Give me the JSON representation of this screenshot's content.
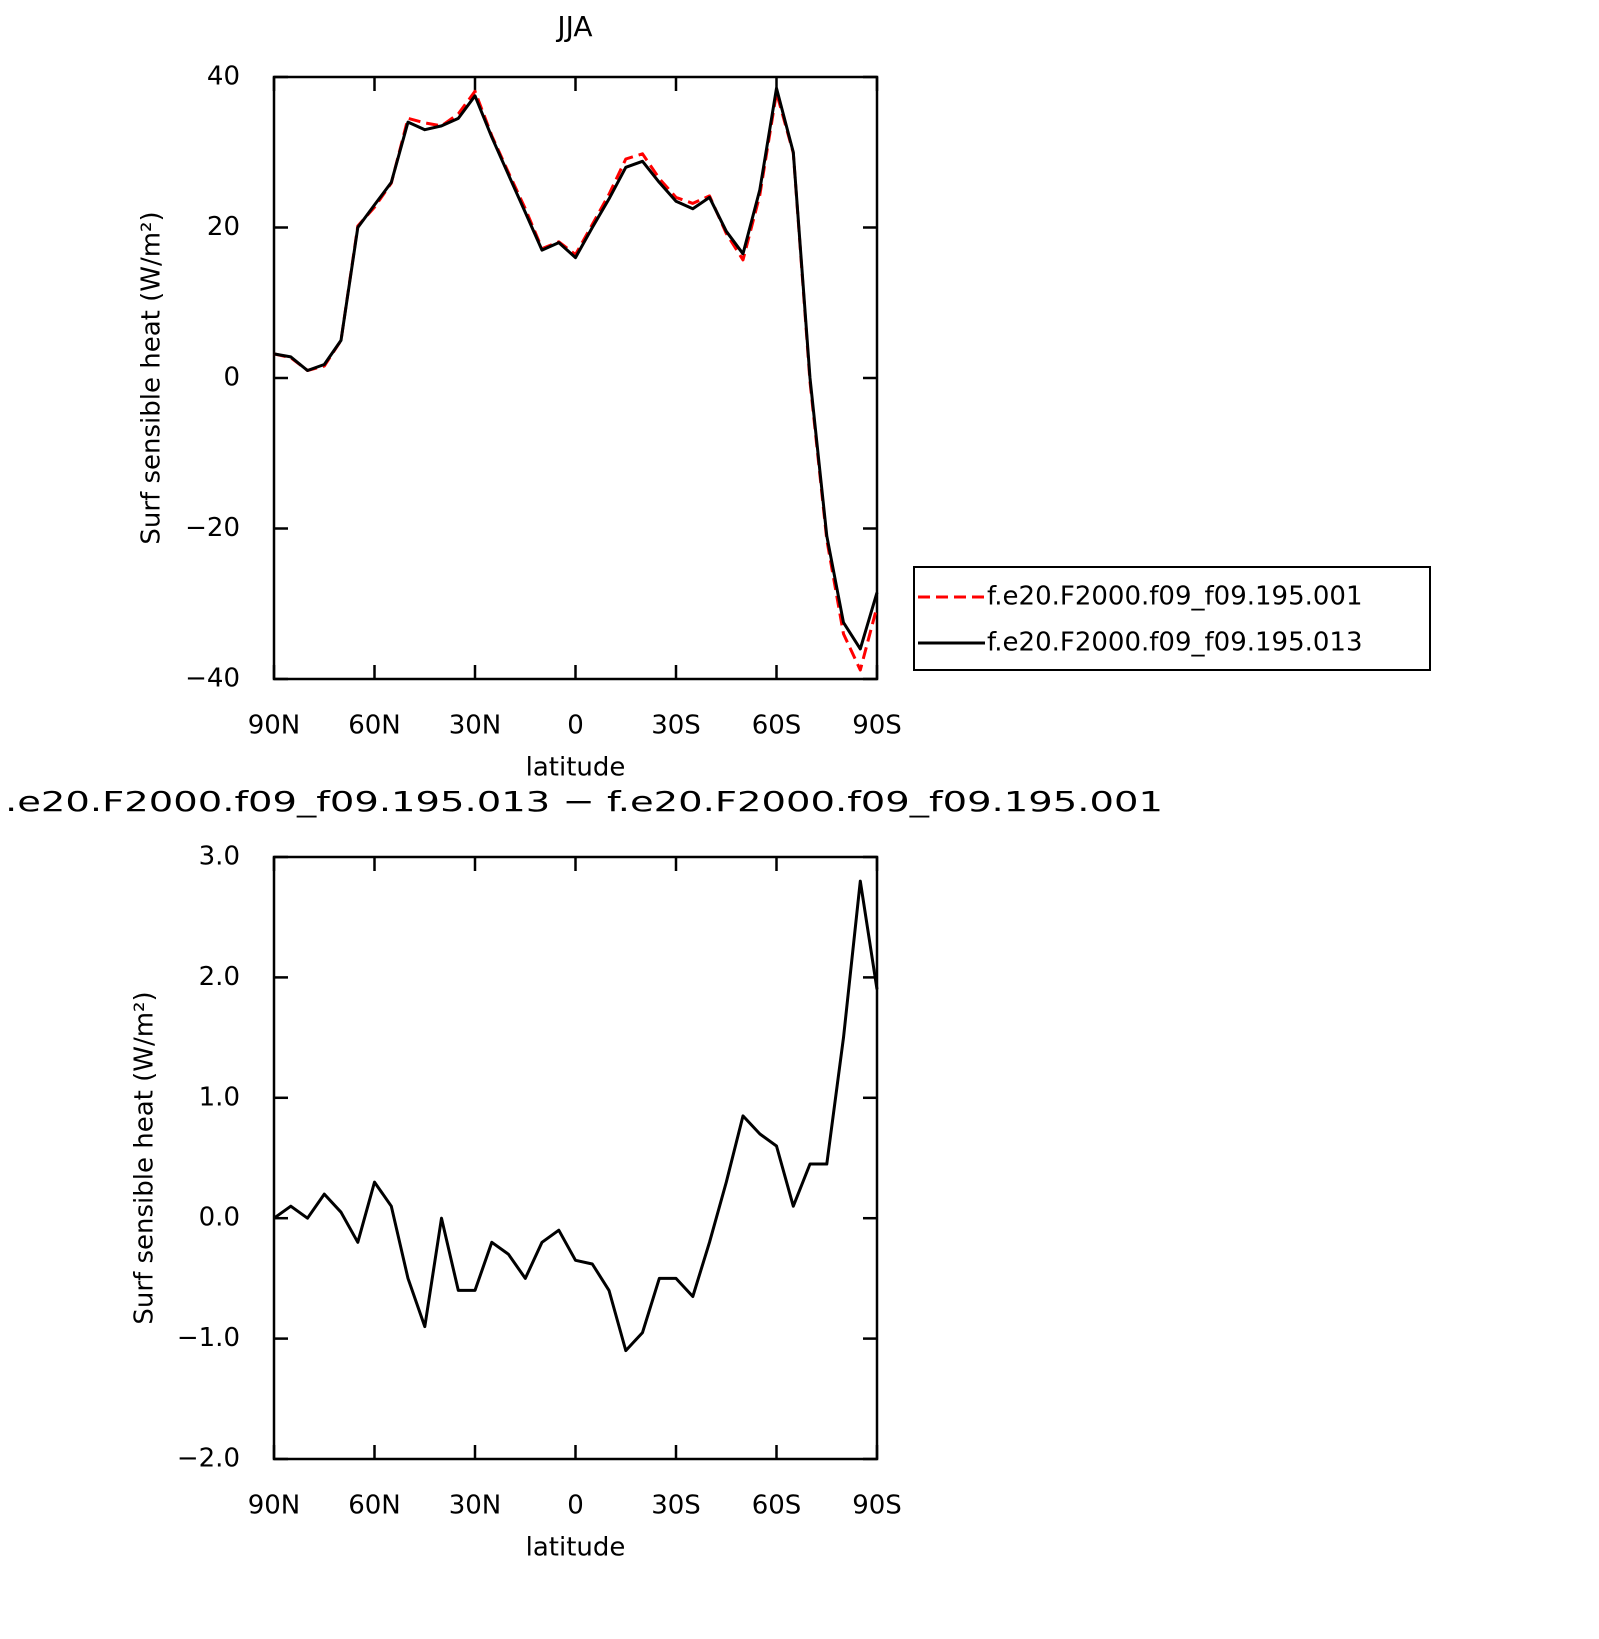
{
  "chart_data": [
    {
      "type": "line",
      "title": "JJA",
      "xlabel": "latitude",
      "ylabel": "Surf sensible heat (W/m²)",
      "x": [
        90,
        85,
        80,
        75,
        70,
        65,
        60,
        55,
        50,
        45,
        40,
        35,
        30,
        25,
        20,
        15,
        10,
        5,
        0,
        -5,
        -10,
        -15,
        -20,
        -25,
        -30,
        -35,
        -40,
        -45,
        -50,
        -55,
        -60,
        -65,
        -70,
        -75,
        -80,
        -85,
        -90
      ],
      "series": [
        {
          "name": "f.e20.F2000.f09_f09.195.001",
          "color": "#ff0000",
          "line_style": "dashed",
          "values": [
            3.2,
            2.7,
            1.0,
            1.6,
            5.0,
            20.2,
            22.7,
            25.9,
            34.5,
            33.9,
            33.5,
            35.1,
            38.1,
            32.2,
            27.3,
            22.5,
            17.2,
            18.1,
            16.4,
            20.4,
            24.4,
            29.1,
            29.8,
            26.5,
            24.0,
            23.2,
            24.2,
            19.2,
            15.7,
            24.3,
            37.9,
            29.9,
            -0.5,
            -21.5,
            -34.0,
            -38.8,
            -30.4
          ]
        },
        {
          "name": "f.e20.F2000.f09_f09.195.013",
          "color": "#000000",
          "line_style": "solid",
          "values": [
            3.2,
            2.8,
            1.0,
            1.8,
            5.0,
            20.0,
            23.0,
            26.0,
            34.0,
            33.0,
            33.5,
            34.5,
            37.5,
            32.0,
            27.0,
            22.0,
            17.0,
            18.0,
            16.0,
            20.0,
            23.8,
            28.0,
            28.8,
            26.0,
            23.5,
            22.5,
            24.0,
            19.5,
            16.5,
            25.0,
            38.5,
            30.0,
            0.0,
            -21.0,
            -32.5,
            -36.0,
            -28.5
          ]
        }
      ],
      "xlim": [
        90,
        -90
      ],
      "xticks": [
        {
          "value": 90,
          "label": "90N"
        },
        {
          "value": 60,
          "label": "60N"
        },
        {
          "value": 30,
          "label": "30N"
        },
        0,
        {
          "value": -30,
          "label": "30S"
        },
        {
          "value": -60,
          "label": "60S"
        },
        {
          "value": -90,
          "label": "90S"
        }
      ],
      "ylim": [
        -40,
        40
      ],
      "yticks": [
        {
          "value": -40,
          "label": "−40"
        },
        {
          "value": -20,
          "label": "−20"
        },
        0,
        20,
        40
      ],
      "legend": "right",
      "grid": false
    },
    {
      "type": "line",
      "title": ".e20.F2000.f09_f09.195.013 − f.e20.F2000.f09_f09.195.001",
      "xlabel": "latitude",
      "ylabel": "Surf sensible heat (W/m²)",
      "x": [
        90,
        85,
        80,
        75,
        70,
        65,
        60,
        55,
        50,
        45,
        40,
        35,
        30,
        25,
        20,
        15,
        10,
        5,
        0,
        -5,
        -10,
        -15,
        -20,
        -25,
        -30,
        -35,
        -40,
        -45,
        -50,
        -55,
        -60,
        -65,
        -70,
        -75,
        -80,
        -85,
        -90
      ],
      "series": [
        {
          "color": "#000000",
          "line_style": "solid",
          "values": [
            0.0,
            0.1,
            0.0,
            0.2,
            0.05,
            -0.2,
            0.3,
            0.1,
            -0.5,
            -0.9,
            0.0,
            -0.6,
            -0.6,
            -0.2,
            -0.3,
            -0.5,
            -0.2,
            -0.1,
            -0.35,
            -0.38,
            -0.6,
            -1.1,
            -0.95,
            -0.5,
            -0.5,
            -0.65,
            -0.2,
            0.3,
            0.85,
            0.7,
            0.6,
            0.1,
            0.45,
            0.45,
            1.5,
            2.8,
            1.9
          ]
        }
      ],
      "xlim": [
        90,
        -90
      ],
      "xticks": [
        {
          "value": 90,
          "label": "90N"
        },
        {
          "value": 60,
          "label": "60N"
        },
        {
          "value": 30,
          "label": "30N"
        },
        0,
        {
          "value": -30,
          "label": "30S"
        },
        {
          "value": -60,
          "label": "60S"
        },
        {
          "value": -90,
          "label": "90S"
        }
      ],
      "ylim": [
        -2,
        3
      ],
      "yticks": [
        {
          "value": -2,
          "label": "−2.0"
        },
        {
          "value": -1,
          "label": "−1.0"
        },
        {
          "value": 0,
          "label": "0.0"
        },
        {
          "value": 1,
          "label": "1.0"
        },
        {
          "value": 2,
          "label": "2.0"
        },
        {
          "value": 3,
          "label": "3.0"
        }
      ],
      "grid": false
    }
  ]
}
